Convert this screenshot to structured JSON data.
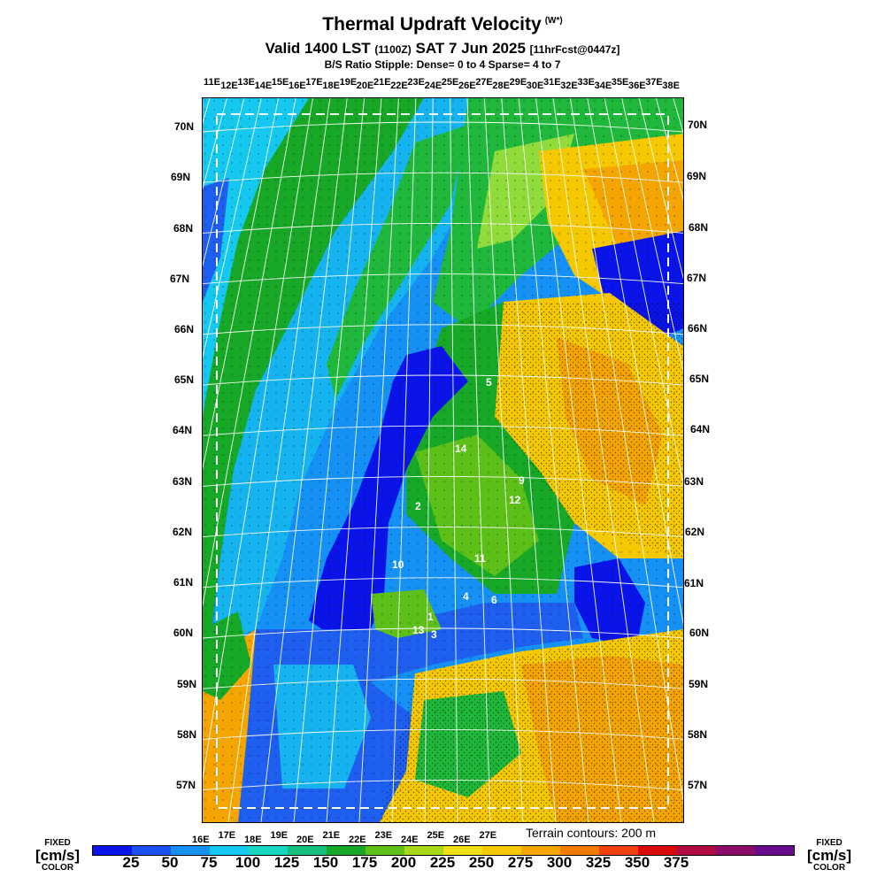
{
  "header": {
    "title": "Thermal Updraft Velocity",
    "title_sup": "(W*)",
    "valid_prefix": "Valid 1400 LST",
    "valid_zulu": "(1100Z)",
    "valid_date": "SAT 7 Jun 2025",
    "forecast": "[11hrFcst@0447z]",
    "stipple": "B/S Ratio Stipple:  Dense= 0 to 4  Sparse= 4 to 7"
  },
  "map": {
    "lat_labels_left": [
      "70N",
      "69N",
      "68N",
      "67N",
      "66N",
      "65N",
      "64N",
      "63N",
      "62N",
      "61N",
      "60N",
      "59N",
      "58N",
      "57N"
    ],
    "lat_labels_right": [
      "70N",
      "69N",
      "68N",
      "67N",
      "66N",
      "65N",
      "64N",
      "63N",
      "62N",
      "61N",
      "60N",
      "59N",
      "58N",
      "57N"
    ],
    "lon_labels_top": [
      "11E",
      "12E",
      "13E",
      "14E",
      "15E",
      "16E",
      "17E",
      "18E",
      "19E",
      "20E",
      "21E",
      "22E",
      "23E",
      "24E",
      "25E",
      "26E",
      "27E",
      "28E",
      "29E",
      "30E",
      "31E",
      "32E",
      "33E",
      "34E",
      "35E",
      "36E",
      "37E",
      "38E"
    ],
    "lon_labels_bottom": [
      "16E",
      "17E",
      "18E",
      "19E",
      "20E",
      "21E",
      "22E",
      "23E",
      "24E",
      "25E",
      "26E",
      "27E"
    ],
    "point_labels": [
      "5",
      "14",
      "9",
      "12",
      "2",
      "10",
      "11",
      "4",
      "6",
      "1",
      "13",
      "3"
    ],
    "terrain_note": "Terrain contours: 200 m",
    "colors": {
      "sea_dark": "#0a14e8",
      "sea_mid": "#1f5ff0",
      "sea_light": "#15b3f0",
      "land_green": "#1fb83a",
      "land_lightgreen": "#8fdc3a",
      "land_yellow": "#f5c800",
      "land_orange": "#f5a500"
    }
  },
  "legend": {
    "fixed_label": "FIXED",
    "unit_label": "[cm/s]",
    "color_label": "COLOR",
    "colors": [
      "#0a14e8",
      "#1a50f0",
      "#1590f5",
      "#15c8f0",
      "#18d8c0",
      "#18c080",
      "#18a828",
      "#5cc018",
      "#a8d818",
      "#f0e018",
      "#f5c800",
      "#f5a500",
      "#f57a00",
      "#f04010",
      "#d80a0a",
      "#b00a40",
      "#8c0a6a",
      "#6a0a8c"
    ],
    "ticks": [
      "25",
      "50",
      "75",
      "100",
      "125",
      "150",
      "175",
      "200",
      "225",
      "250",
      "275",
      "300",
      "325",
      "350",
      "375"
    ]
  }
}
